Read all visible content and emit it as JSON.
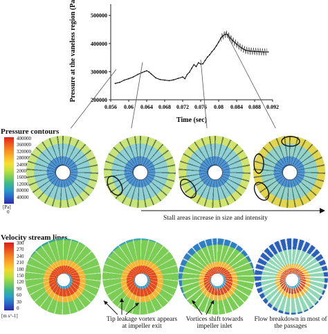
{
  "chart_data": {
    "type": "line",
    "ylabel": "Pressure at the vaneless region (Pa)",
    "xlabel": "Time (sec)",
    "xlim": [
      0.056,
      0.092
    ],
    "ylim": [
      200000,
      540000
    ],
    "x_ticks": [
      "0.056",
      "0.06",
      "0.064",
      "0.068",
      "0.072",
      "0.076",
      "0.08",
      "0.084",
      "0.088",
      "0.092"
    ],
    "y_ticks": [
      "200000",
      "300000",
      "400000",
      "500000"
    ],
    "series": [
      {
        "x": [
          0.057,
          0.058,
          0.059,
          0.06,
          0.061,
          0.062,
          0.063,
          0.0635,
          0.064,
          0.0645,
          0.065,
          0.066,
          0.067,
          0.068,
          0.069,
          0.07,
          0.071,
          0.072,
          0.0725,
          0.073,
          0.0735,
          0.074,
          0.0745,
          0.075,
          0.0755,
          0.076,
          0.0765,
          0.077,
          0.0775,
          0.078,
          0.0785,
          0.079,
          0.0795,
          0.08,
          0.0805,
          0.081,
          0.0815,
          0.082,
          0.0825,
          0.083,
          0.084,
          0.085,
          0.086,
          0.087,
          0.088,
          0.089,
          0.09,
          0.091
        ],
        "values": [
          258000,
          262000,
          270000,
          275000,
          281000,
          290000,
          297000,
          300000,
          303000,
          299000,
          292000,
          278000,
          272000,
          270000,
          268000,
          271000,
          276000,
          281000,
          275000,
          290000,
          298000,
          312000,
          325000,
          318000,
          332000,
          327000,
          328000,
          340000,
          352000,
          360000,
          371000,
          380000,
          392000,
          405000,
          420000,
          428000,
          433000,
          432000,
          421000,
          412000,
          398000,
          385000,
          376000,
          373000,
          372000,
          371000,
          370000,
          370000
        ]
      }
    ]
  },
  "section1": {
    "title": "Pressure contours",
    "unit": "[Pa]",
    "legend_values": [
      "400000",
      "360000",
      "320000",
      "280000",
      "240000",
      "200000",
      "160000",
      "120000",
      "80000",
      "40000",
      "0"
    ],
    "legend_colors": [
      "#e0201a",
      "#ef5a1c",
      "#f78c1e",
      "#fbb829",
      "#f7e033",
      "#c2e03b",
      "#7bcf58",
      "#3ab88c",
      "#2a9bc8",
      "#2b66c8",
      "#2e2aa6"
    ],
    "annotation": "Stall areas increase in size and intensity"
  },
  "section2": {
    "title": "Velocity stream lines",
    "unit": "[m s^-1]",
    "legend_values": [
      "300",
      "270",
      "240",
      "210",
      "180",
      "150",
      "120",
      "90",
      "60",
      "30",
      "0"
    ],
    "legend_colors": [
      "#d81f1a",
      "#ea4b1c",
      "#f58020",
      "#fbab28",
      "#f5d630",
      "#bfe03c",
      "#7ccf56",
      "#3cb88b",
      "#2a9ccb",
      "#2a66c6",
      "#2c2aa3"
    ],
    "captions": [
      "Tip leakage vortex appears at impeller exit",
      "Vortices shift towards impeller inlet",
      "Flow breakdown in most of the passages"
    ]
  }
}
